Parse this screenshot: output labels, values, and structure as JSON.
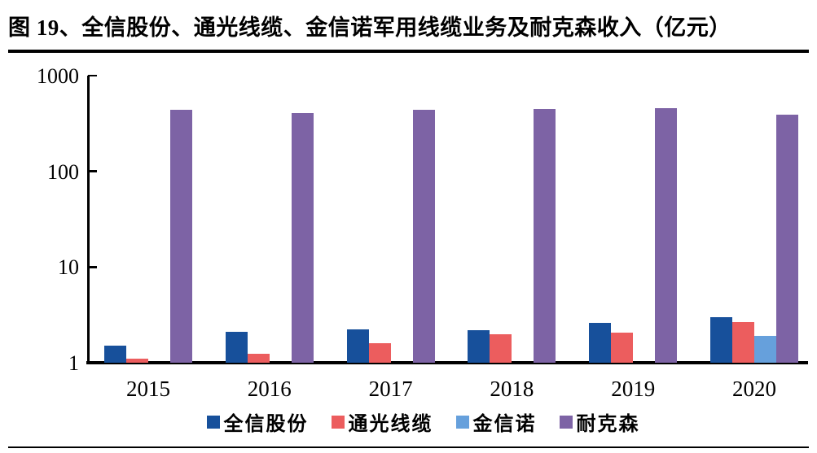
{
  "figure": {
    "title": "图 19、全信股份、通光线缆、金信诺军用线缆业务及耐克森收入（亿元）"
  },
  "chart_data": {
    "type": "bar",
    "title": "图 19、全信股份、通光线缆、金信诺军用线缆业务及耐克森收入（亿元）",
    "xlabel": "",
    "ylabel": "",
    "y_scale": "log",
    "ylim": [
      1,
      1000
    ],
    "yticks": [
      1,
      10,
      100,
      1000
    ],
    "ytick_labels": [
      "1",
      "10",
      "100",
      "1000"
    ],
    "grid": false,
    "legend_position": "bottom",
    "categories": [
      "2015",
      "2016",
      "2017",
      "2018",
      "2019",
      "2020"
    ],
    "series": [
      {
        "name": "全信股份",
        "color": "#17509B",
        "values": [
          1.5,
          2.1,
          2.25,
          2.2,
          2.6,
          3.0
        ]
      },
      {
        "name": "通光线缆",
        "color": "#EC5D5E",
        "values": [
          1.1,
          1.25,
          1.6,
          2.0,
          2.05,
          2.65
        ]
      },
      {
        "name": "金信诺",
        "color": "#66A0DC",
        "values": [
          null,
          null,
          null,
          null,
          null,
          1.9
        ]
      },
      {
        "name": "耐克森",
        "color": "#7D63A5",
        "values": [
          440,
          405,
          440,
          450,
          460,
          390
        ]
      }
    ],
    "colors": {
      "axis": "#000000",
      "background": "#FFFFFF"
    }
  }
}
